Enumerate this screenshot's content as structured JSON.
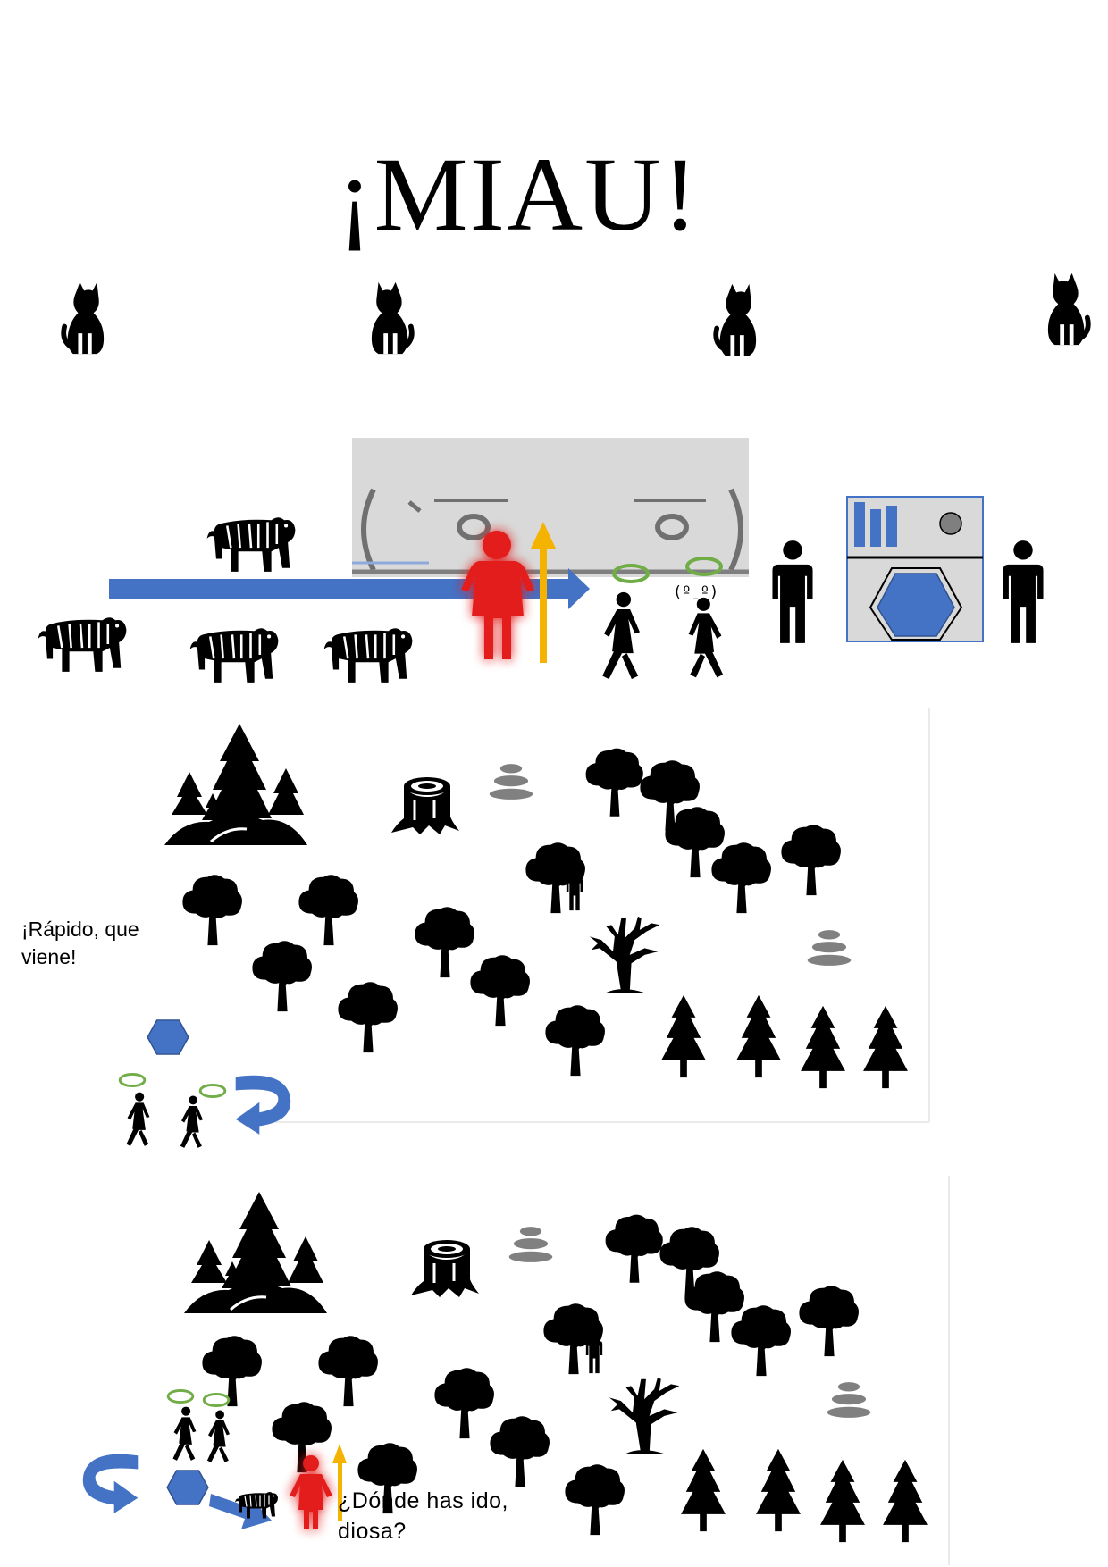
{
  "title": "¡MIAU!",
  "face_text": "(ºˍº)",
  "caption_1": "¡Rápido, que viene!",
  "caption_2": "¿Dónde has ido, diosa?",
  "icons": {
    "cat": "cat-icon",
    "tiger": "tiger-icon",
    "person": "person-icon",
    "goddess": "goddess-figure-icon",
    "halo": "halo-icon",
    "portal": "portal-machine-icon",
    "hexagon": "hexagon-icon",
    "curved_arrow": "curved-arrow-icon",
    "tree": "tree-icon",
    "pine": "pine-tree-icon",
    "forest": "forest-group-icon",
    "stump": "tree-stump-icon",
    "stones": "stacked-stones-icon",
    "dead_tree": "dead-tree-icon"
  },
  "colors": {
    "blue": "#4472C4",
    "red": "#E31B1B",
    "yellow": "#F5B301",
    "halo_green": "#70AD47",
    "grey": "#808080",
    "panel": "#D9D9D9"
  }
}
